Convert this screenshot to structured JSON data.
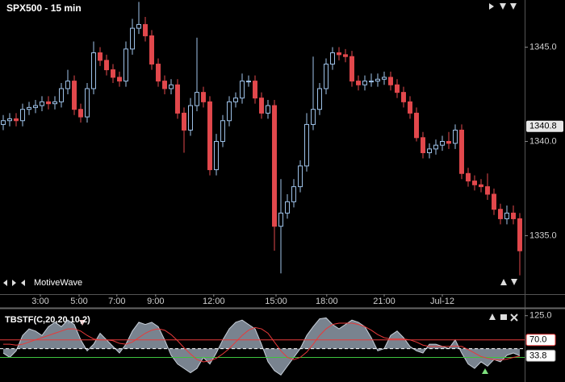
{
  "chart_data": {
    "type": "candlestick",
    "title": "SPX500 - 15 min",
    "watermark": "MotiveWave",
    "open": [
      1340.9,
      1341.1,
      1341.2,
      1341.1,
      1341.7,
      1341.8,
      1341.9,
      1342.1,
      1342.0,
      1342.1,
      1342.8,
      1343.2,
      1341.7,
      1341.3,
      1342.8,
      1344.7,
      1344.3,
      1343.8,
      1343.4,
      1343.2,
      1344.9,
      1346.0,
      1346.2,
      1345.6,
      1344.1,
      1343.2,
      1342.8,
      1343.0,
      1341.5,
      1340.6,
      1341.9,
      1342.6,
      1342.1,
      1338.5,
      1340.0,
      1341.1,
      1342.1,
      1342.3,
      1343.2,
      1343.2,
      1342.3,
      1341.5,
      1341.9,
      1335.5,
      1336.2,
      1336.8,
      1337.6,
      1338.7,
      1340.9,
      1341.7,
      1342.8,
      1344.1,
      1344.7,
      1344.6,
      1344.5,
      1343.2,
      1343.0,
      1343.2,
      1343.2,
      1343.3,
      1343.4,
      1343.0,
      1342.6,
      1342.1,
      1341.5,
      1340.2,
      1339.4,
      1339.6,
      1339.8,
      1340.0,
      1339.9,
      1340.6,
      1338.3,
      1337.9,
      1337.7,
      1337.6,
      1337.2,
      1336.4,
      1335.9,
      1336.2,
      1335.9
    ],
    "high": [
      1341.4,
      1341.5,
      1341.5,
      1342.0,
      1342.1,
      1342.2,
      1342.4,
      1342.4,
      1342.4,
      1343.1,
      1343.8,
      1343.5,
      1342.0,
      1343.1,
      1345.3,
      1345.0,
      1344.6,
      1344.1,
      1343.7,
      1345.3,
      1346.5,
      1347.4,
      1346.6,
      1345.9,
      1344.4,
      1343.5,
      1343.3,
      1343.3,
      1341.8,
      1342.3,
      1345.5,
      1342.9,
      1342.4,
      1340.4,
      1341.4,
      1342.4,
      1342.6,
      1343.6,
      1343.5,
      1343.5,
      1342.6,
      1342.2,
      1342.2,
      1338.0,
      1337.2,
      1338.0,
      1339.0,
      1341.5,
      1344.5,
      1343.1,
      1344.4,
      1345.0,
      1345.0,
      1344.9,
      1344.8,
      1343.5,
      1343.5,
      1343.6,
      1343.6,
      1343.7,
      1343.7,
      1343.3,
      1342.9,
      1342.4,
      1341.8,
      1340.5,
      1339.9,
      1340.1,
      1340.3,
      1340.5,
      1340.9,
      1340.9,
      1338.6,
      1338.2,
      1338.0,
      1338.3,
      1337.5,
      1336.7,
      1336.6,
      1336.6,
      1336.2
    ],
    "low": [
      1340.6,
      1340.8,
      1340.8,
      1340.8,
      1341.4,
      1341.5,
      1341.6,
      1341.7,
      1341.7,
      1341.8,
      1342.5,
      1341.4,
      1341.0,
      1341.0,
      1342.5,
      1344.0,
      1343.5,
      1343.1,
      1342.9,
      1342.9,
      1344.6,
      1345.7,
      1345.3,
      1343.8,
      1342.9,
      1342.5,
      1342.5,
      1341.2,
      1339.4,
      1340.3,
      1341.6,
      1341.8,
      1338.2,
      1338.2,
      1339.7,
      1340.8,
      1341.8,
      1342.0,
      1342.9,
      1342.0,
      1341.2,
      1341.2,
      1334.2,
      1333.0,
      1335.9,
      1336.5,
      1337.3,
      1338.4,
      1340.6,
      1341.4,
      1342.5,
      1343.8,
      1344.3,
      1344.2,
      1342.9,
      1342.7,
      1342.7,
      1342.9,
      1342.9,
      1343.0,
      1342.7,
      1342.3,
      1341.8,
      1341.2,
      1340.0,
      1339.1,
      1339.1,
      1339.3,
      1339.5,
      1339.6,
      1339.6,
      1338.0,
      1337.6,
      1337.4,
      1337.3,
      1336.9,
      1336.1,
      1335.6,
      1335.6,
      1335.6,
      1332.9
    ],
    "close": [
      1341.1,
      1341.2,
      1341.1,
      1341.7,
      1341.8,
      1341.9,
      1342.1,
      1342.0,
      1342.1,
      1342.8,
      1343.2,
      1341.7,
      1341.3,
      1342.8,
      1344.7,
      1344.3,
      1343.8,
      1343.4,
      1343.2,
      1344.9,
      1346.0,
      1346.2,
      1345.6,
      1344.1,
      1343.2,
      1342.8,
      1343.0,
      1341.5,
      1340.6,
      1341.9,
      1342.6,
      1342.1,
      1338.5,
      1340.0,
      1341.1,
      1342.1,
      1342.3,
      1343.2,
      1343.2,
      1342.3,
      1341.5,
      1341.9,
      1335.5,
      1336.2,
      1336.8,
      1337.6,
      1338.7,
      1340.9,
      1341.7,
      1342.8,
      1344.1,
      1344.7,
      1344.6,
      1344.5,
      1343.2,
      1343.0,
      1343.2,
      1343.2,
      1343.3,
      1343.4,
      1343.0,
      1342.6,
      1342.1,
      1341.5,
      1340.2,
      1339.4,
      1339.6,
      1339.8,
      1340.0,
      1339.9,
      1340.6,
      1338.3,
      1337.9,
      1337.7,
      1337.6,
      1337.2,
      1336.4,
      1335.9,
      1336.2,
      1335.9,
      1334.2
    ],
    "up_color": "#9fc3ea",
    "down_color": "#e2484c",
    "xlim": [
      -0.5,
      80.75
    ],
    "xticks": [
      {
        "value": 5.75,
        "label": "3:00"
      },
      {
        "value": 11.75,
        "label": "5:00"
      },
      {
        "value": 17.6,
        "label": "7:00"
      },
      {
        "value": 23.6,
        "label": "9:00"
      },
      {
        "value": 32.6,
        "label": "12:00"
      },
      {
        "value": 42.25,
        "label": "15:00"
      },
      {
        "value": 50.1,
        "label": "18:00"
      },
      {
        "value": 59,
        "label": "21:00"
      },
      {
        "value": 68,
        "label": "Jul-12"
      }
    ],
    "ylim": [
      1331.9,
      1347.5
    ],
    "yticks": [
      {
        "value": 1345,
        "label": "1345.0"
      },
      {
        "value": 1340,
        "label": "1340.0"
      },
      {
        "value": 1335,
        "label": "1335.0"
      }
    ],
    "price_marker": {
      "value": 1340.8,
      "label": "1340.8"
    },
    "indicator": {
      "title": "TBSTF(C,20,20,10,2)",
      "ylim": [
        -26,
        141
      ],
      "yticks": [
        {
          "value": 125,
          "label": "125.0"
        }
      ],
      "fill_baseline": 50,
      "fill_color": "#8e9aa8",
      "oscillator": [
        40,
        30,
        45,
        80,
        95,
        90,
        80,
        100,
        110,
        100,
        115,
        105,
        70,
        45,
        60,
        85,
        70,
        55,
        40,
        60,
        90,
        110,
        105,
        110,
        100,
        70,
        35,
        15,
        5,
        -5,
        5,
        30,
        15,
        40,
        70,
        95,
        110,
        115,
        105,
        95,
        60,
        20,
        0,
        -10,
        10,
        30,
        50,
        80,
        100,
        118,
        120,
        105,
        95,
        105,
        115,
        110,
        100,
        75,
        45,
        50,
        80,
        90,
        75,
        55,
        45,
        40,
        60,
        60,
        55,
        50,
        70,
        40,
        15,
        5,
        20,
        10,
        25,
        20,
        35,
        40,
        33.8
      ],
      "last_value_label": "33.8",
      "signal": [
        60,
        60,
        58,
        60,
        65,
        70,
        75,
        80,
        85,
        90,
        95,
        95,
        90,
        80,
        72,
        70,
        70,
        68,
        62,
        60,
        65,
        75,
        85,
        92,
        95,
        92,
        82,
        68,
        52,
        38,
        25,
        20,
        22,
        28,
        38,
        50,
        65,
        80,
        92,
        98,
        95,
        85,
        65,
        45,
        30,
        25,
        30,
        42,
        60,
        80,
        95,
        105,
        108,
        108,
        108,
        105,
        100,
        92,
        82,
        75,
        72,
        72,
        72,
        70,
        65,
        58,
        55,
        55,
        55,
        55,
        56,
        55,
        48,
        40,
        32,
        28,
        25,
        24,
        26,
        30,
        33
      ],
      "signal_color": "#e83a3a",
      "levels": [
        {
          "value": 70,
          "label": "70.0",
          "color": "#e83a3a",
          "style": "solid"
        },
        {
          "value": 50,
          "color": "#ffffff",
          "style": "dashed"
        },
        {
          "value": 30,
          "color": "#3ec43e",
          "style": "solid"
        }
      ]
    }
  }
}
